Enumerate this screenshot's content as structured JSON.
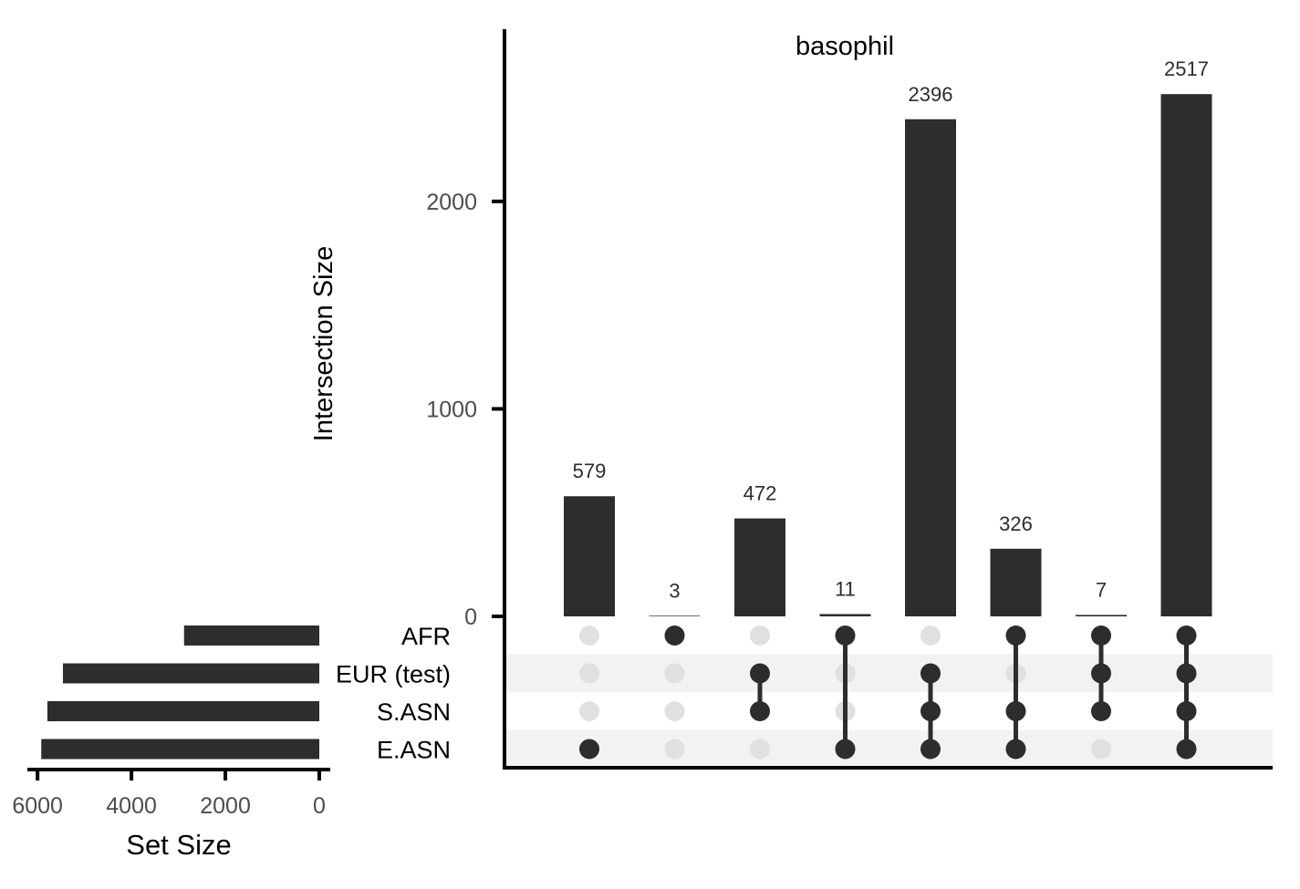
{
  "chart_data": {
    "type": "bar",
    "subtype": "upset",
    "title": "basophil",
    "ylabel": "Intersection Size",
    "ylim": [
      0,
      2830
    ],
    "yticks": [
      0,
      1000,
      2000
    ],
    "sets": [
      "AFR",
      "EUR (test)",
      "S.ASN",
      "E.ASN"
    ],
    "set_sizes": [
      2880,
      5460,
      5790,
      5920
    ],
    "set_size_label": "Set Size",
    "set_size_ticks": [
      6000,
      4000,
      2000,
      0
    ],
    "set_size_max": 6100,
    "intersections": [
      {
        "members": [
          "E.ASN"
        ],
        "value": 579
      },
      {
        "members": [
          "AFR"
        ],
        "value": 3
      },
      {
        "members": [
          "EUR (test)",
          "S.ASN"
        ],
        "value": 472
      },
      {
        "members": [
          "AFR",
          "E.ASN"
        ],
        "value": 11
      },
      {
        "members": [
          "EUR (test)",
          "S.ASN",
          "E.ASN"
        ],
        "value": 2396
      },
      {
        "members": [
          "AFR",
          "S.ASN",
          "E.ASN"
        ],
        "value": 326
      },
      {
        "members": [
          "AFR",
          "EUR (test)",
          "S.ASN"
        ],
        "value": 7
      },
      {
        "members": [
          "AFR",
          "EUR (test)",
          "S.ASN",
          "E.ASN"
        ],
        "value": 2517
      }
    ],
    "colors": {
      "bar": "#2d2d2d",
      "dot_active": "#2d2d2d",
      "dot_inactive": "#e0e0e0",
      "band": "#f2f2f2",
      "axis": "#000000",
      "tick_label": "#4d4d4d"
    },
    "grid": false
  }
}
